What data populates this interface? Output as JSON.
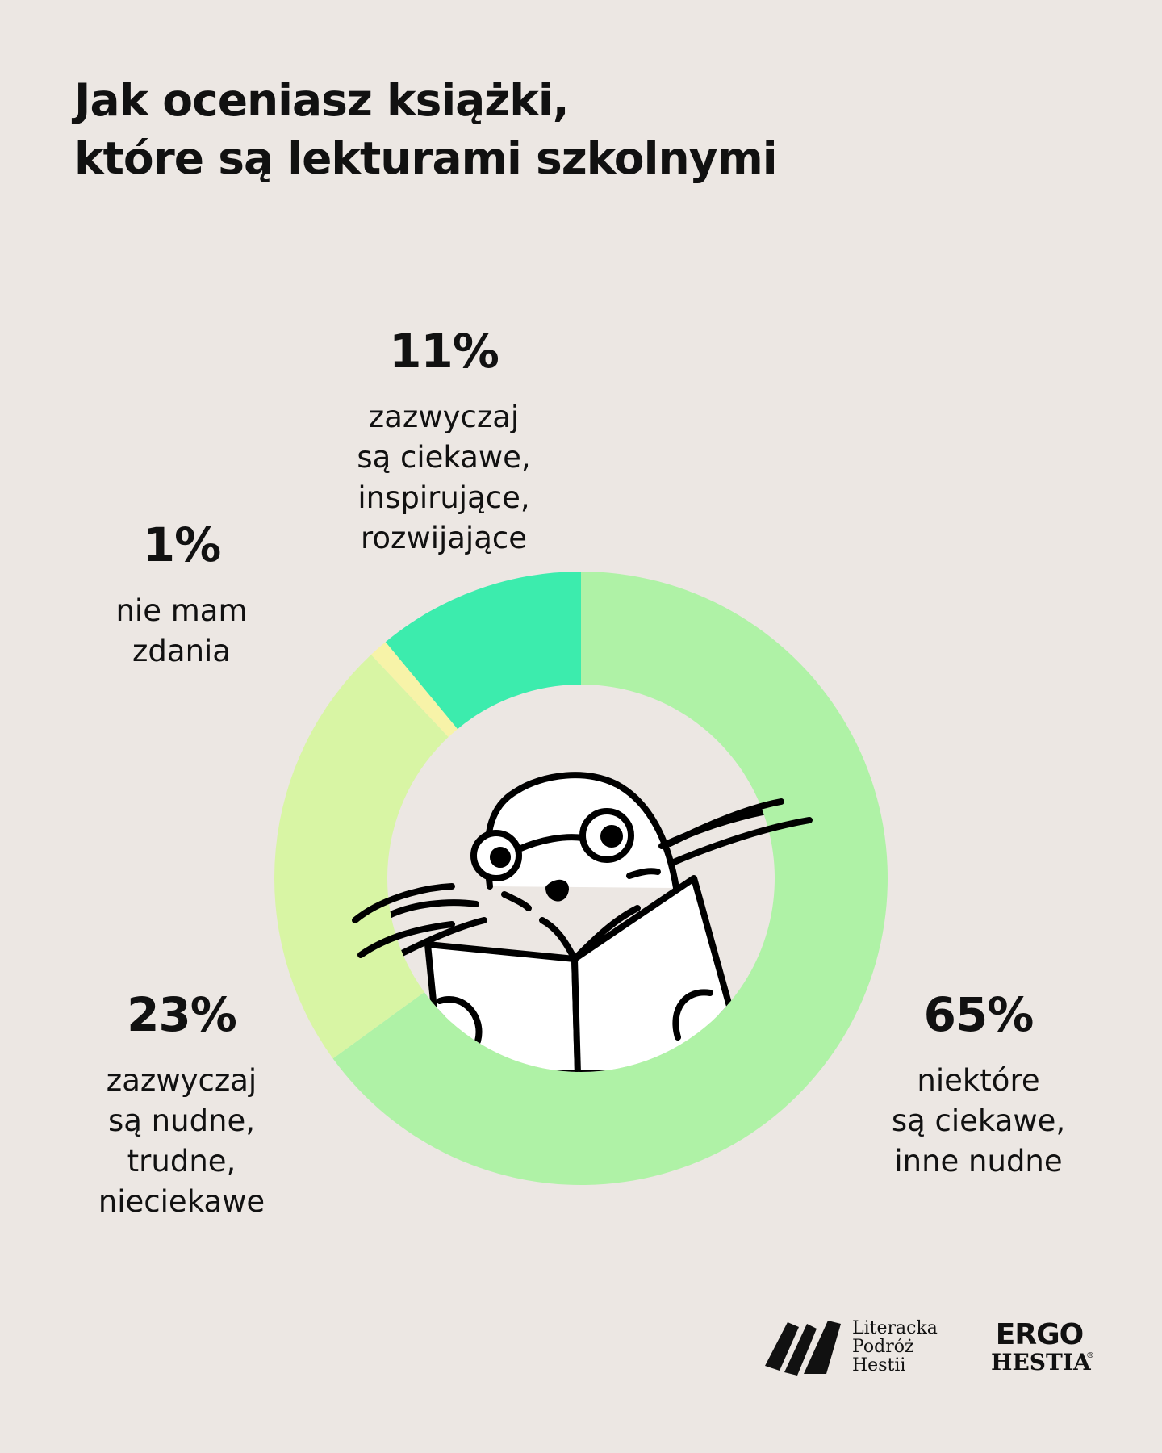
{
  "title": {
    "line1": "Jak oceniasz książki,",
    "line2": "które są lekturami szkolnymi"
  },
  "chart_data": {
    "type": "pie",
    "variant": "donut",
    "start_angle_deg": 0,
    "direction": "clockwise",
    "slices": [
      {
        "value": 65,
        "pct_label": "65%",
        "desc": [
          "niektóre",
          "są ciekawe,",
          "inne nudne"
        ],
        "color": "#AFF2A6"
      },
      {
        "value": 23,
        "pct_label": "23%",
        "desc": [
          "zazwyczaj",
          "są nudne,",
          "trudne,",
          "nieciekawe"
        ],
        "color": "#D8F5A4"
      },
      {
        "value": 1,
        "pct_label": "1%",
        "desc": [
          "nie mam",
          "zdania"
        ],
        "color": "#F7F3A8"
      },
      {
        "value": 11,
        "pct_label": "11%",
        "desc": [
          "zazwyczaj",
          "są ciekawe,",
          "inspirujące,",
          "rozwijające"
        ],
        "color": "#3CECAD"
      }
    ]
  },
  "footer": {
    "brand1": [
      "Literacka",
      "Podróż",
      "Hestii"
    ],
    "brand2_top": "ERGO",
    "brand2_bottom": "HESTIA",
    "brand2_mark": "®"
  },
  "colors": {
    "background": "#ECE7E3",
    "text": "#111111"
  }
}
